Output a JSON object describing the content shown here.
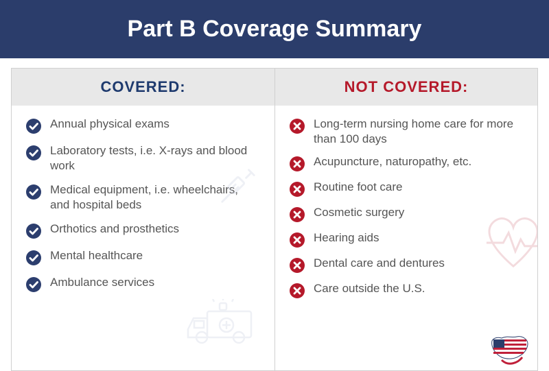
{
  "header": {
    "title": "Part B Coverage Summary"
  },
  "columns": {
    "covered": {
      "label": "COVERED:",
      "label_color": "#1e3a6e",
      "icon_color": "#2c3e6e",
      "items": [
        "Annual physical exams",
        "Laboratory tests, i.e. X-rays and blood work",
        "Medical equipment, i.e. wheelchairs, and hospital beds",
        "Orthotics and prosthetics",
        "Mental healthcare",
        "Ambulance services"
      ]
    },
    "notcovered": {
      "label": "NOT COVERED:",
      "label_color": "#b5192a",
      "icon_color": "#b5192a",
      "items": [
        "Long-term nursing home care for more than 100 days",
        "Acupuncture, naturopathy, etc.",
        "Routine foot care",
        "Cosmetic surgery",
        "Hearing aids",
        "Dental care and dentures",
        "Care outside the U.S."
      ]
    }
  },
  "styling": {
    "header_bg": "#2b3d6b",
    "header_text_color": "#ffffff",
    "col_header_bg": "#e8e8e8",
    "item_text_color": "#555555",
    "bg_icon_color": "#d5d9e8",
    "border_color": "#d0d0d0"
  }
}
